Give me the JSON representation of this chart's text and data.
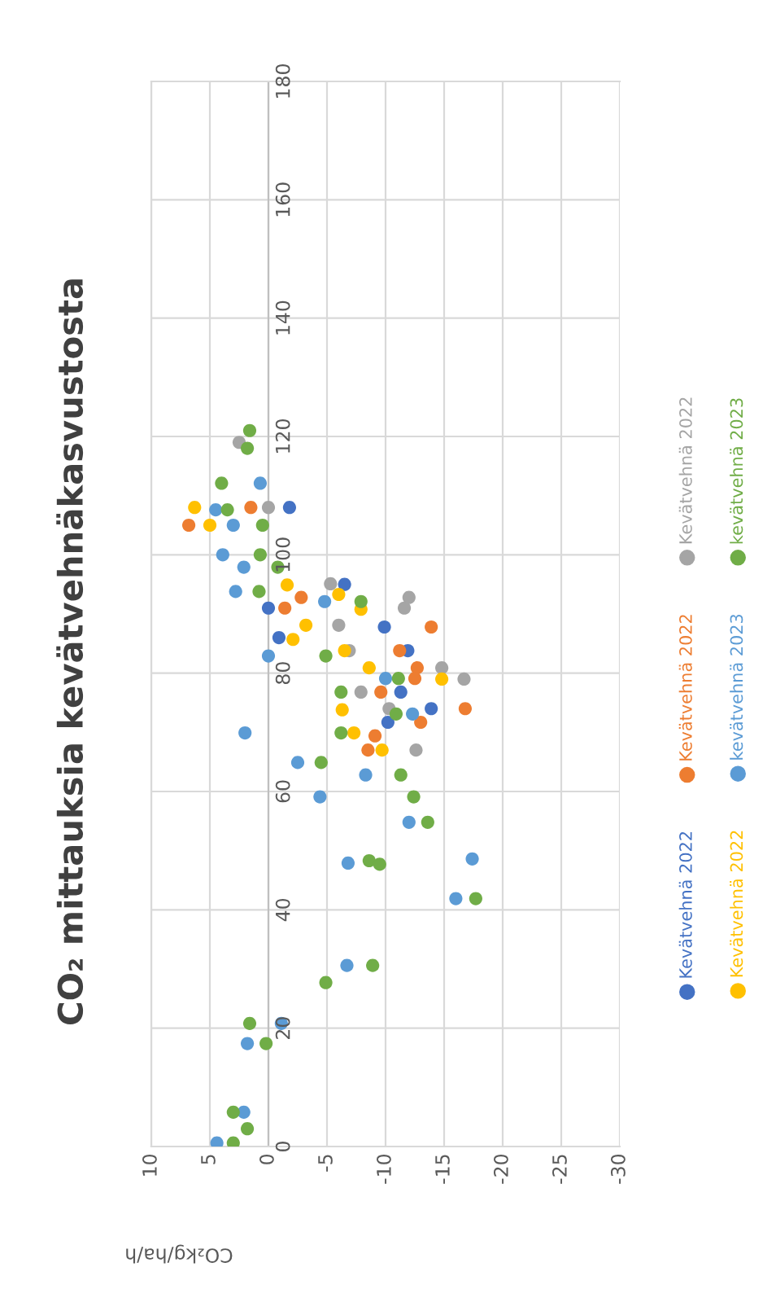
{
  "chart_data": {
    "type": "scatter",
    "title": "CO₂ mittauksia kevätvehnäkasvustosta",
    "xlabel": "CO₂kg/ha/h",
    "ylim": [
      0,
      180
    ],
    "yticks": [
      0,
      20,
      40,
      60,
      80,
      100,
      120,
      140,
      160,
      180
    ],
    "xlim": [
      10,
      -30
    ],
    "xticks": [
      10,
      5,
      0,
      -5,
      -10,
      -15,
      -20,
      -25,
      -30
    ],
    "grid": true,
    "legend": "right",
    "marker": "circle",
    "series": [
      {
        "name": "Kevätvehnä 2022",
        "color": "#4472c4",
        "values": [
          108,
          95,
          91,
          86,
          87.8,
          83.8,
          76.8,
          74.0,
          71.7
        ],
        "x": [
          -1.8,
          -6.5,
          0,
          -0.9,
          -9.9,
          -11.9,
          -11.3,
          -13.9,
          -10.2
        ]
      },
      {
        "name": "Kevätvehnä 2022",
        "color": "#ed7d31",
        "values": [
          108,
          105,
          92.8,
          91,
          87.8,
          83.8,
          80.9,
          79.1,
          76.8,
          74.0,
          71.7,
          69.4,
          67.0
        ],
        "x": [
          1.5,
          6.8,
          -2.8,
          -1.4,
          -13.9,
          -11.2,
          -12.7,
          -12.5,
          -9.6,
          -16.8,
          -13.0,
          -9.1,
          -8.5
        ]
      },
      {
        "name": "Kevätvehnä 2022",
        "color": "#a5a5a5",
        "values": [
          119,
          108,
          95.1,
          92.8,
          91,
          88.1,
          83.8,
          80.9,
          79.0,
          76.8,
          74.0,
          67.0
        ],
        "x": [
          2.5,
          0,
          -5.3,
          -12.0,
          -11.6,
          -6.0,
          -6.9,
          -14.8,
          -16.7,
          -7.9,
          -10.3,
          -12.6
        ]
      },
      {
        "name": "Kevätvehnä 2022",
        "color": "#ffc000",
        "values": [
          108,
          105,
          94.9,
          93.3,
          90.8,
          85.7,
          88.1,
          83.8,
          80.9,
          79.0,
          73.8,
          69.9,
          67.0
        ],
        "x": [
          6.3,
          5.0,
          -1.6,
          -6.0,
          -7.9,
          -2.1,
          -3.2,
          -6.5,
          -8.6,
          -14.8,
          -6.3,
          -7.3,
          -9.7
        ]
      },
      {
        "name": "kevätvehnä 2023",
        "color": "#5b9bd5",
        "values": [
          112.1,
          107.6,
          105,
          100,
          97.9,
          93.8,
          92.1,
          82.9,
          79.1,
          73.1,
          69.9,
          64.9,
          62.8,
          59.1,
          54.8,
          48.6,
          47.9,
          41.9,
          30.6,
          20.8,
          17.4,
          5.8,
          0.6
        ],
        "x": [
          0.7,
          4.5,
          3.0,
          3.9,
          2.1,
          2.8,
          -4.8,
          0,
          -10.0,
          -12.3,
          2.0,
          -2.5,
          -8.3,
          -4.4,
          -12.0,
          -17.4,
          -6.8,
          -16.0,
          -6.7,
          -1.1,
          1.8,
          2.1,
          4.4
        ]
      },
      {
        "name": "kevätvehnä 2023",
        "color": "#70ad47",
        "values": [
          121,
          118,
          112.1,
          107.6,
          105,
          100,
          97.9,
          93.8,
          92.1,
          82.9,
          79.1,
          76.8,
          73.1,
          69.9,
          64.9,
          62.8,
          59.1,
          54.8,
          48.3,
          47.7,
          41.9,
          30.6,
          27.7,
          20.8,
          17.4,
          5.8,
          3,
          0.6
        ],
        "x": [
          1.6,
          1.8,
          4.0,
          3.5,
          0.5,
          0.7,
          -0.8,
          0.8,
          -7.9,
          -4.9,
          -11.1,
          -6.2,
          -10.9,
          -6.2,
          -4.5,
          -11.3,
          -12.4,
          -13.6,
          -8.6,
          -9.5,
          -17.7,
          -8.9,
          -4.9,
          1.6,
          0.2,
          3.0,
          1.8,
          3.0
        ]
      }
    ]
  }
}
